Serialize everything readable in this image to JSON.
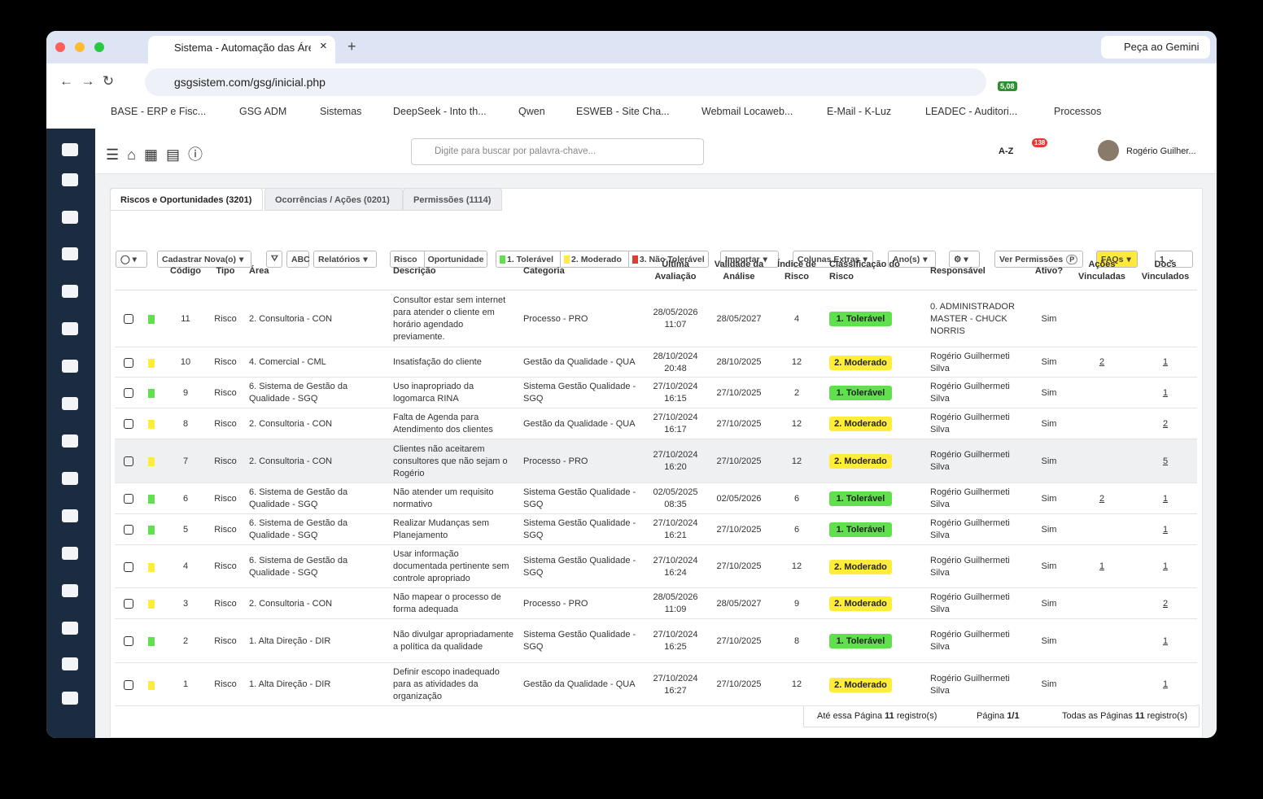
{
  "browser": {
    "tab_title": "Sistema - Automação das Áre",
    "gemini": "Peça ao Gemini",
    "url": "gsgsistem.com/gsg/inicial.php",
    "badge": "5,08",
    "bookmarks": [
      "BASE - ERP e Fisc...",
      "GSG ADM",
      "Sistemas",
      "DeepSeek - Into th...",
      "Qwen",
      "ESWEB - Site Cha...",
      "Webmail Locaweb...",
      "E-Mail - K-Luz",
      "LEADEC - Auditori...",
      "Processos"
    ]
  },
  "app": {
    "search_placeholder": "Digite para buscar por palavra-chave...",
    "az": "A-Z",
    "notifications": "138",
    "user": "Rogério Guilher..."
  },
  "tabs": [
    "Riscos e Oportunidades  (3201)",
    "Ocorrências / Ações  (0201)",
    "Permissões (1114)"
  ],
  "toolbar": {
    "register": "Cadastrar Nova(o)",
    "abc": "ABC",
    "reports": "Relatórios",
    "risk": "Risco",
    "opportunity": "Oportunidade",
    "tolerable": "1. Tolerável",
    "moderate": "2. Moderado",
    "not_tolerable": "3. Não Tolerável",
    "import": "Importar",
    "extra_columns": "Colunas Extras",
    "years": "Ano(s)",
    "permissions": "Ver Permissões",
    "permissions_badge": "P",
    "faqs": "FAQs",
    "page": "1"
  },
  "table": {
    "headers": {
      "codigo": "Código",
      "tipo": "Tipo",
      "area": "Área",
      "descricao": "Descrição",
      "categoria": "Categoria",
      "ultima": "Última Avaliação",
      "validade": "Validade da Análise",
      "indice": "Índice de Risco",
      "classificacao": "Classificação do Risco",
      "responsavel": "Responsável",
      "ativo": "Ativo?",
      "acoes": "Ações Vinculadas",
      "docs": "Docs Vinculados"
    },
    "rows": [
      {
        "codigo": 11,
        "tipo": "Risco",
        "area": "2. Consultoria - CON",
        "descricao": "Consultor estar sem internet para atender o cliente em horário agendado previamente.",
        "categoria": "Processo - PRO",
        "ultima": "28/05/2026 11:07",
        "validade": "28/05/2027",
        "indice": 4,
        "classificacao": "1. Tolerável",
        "color": "#5fe04c",
        "responsavel": "0. ADMINISTRADOR MASTER - CHUCK NORRIS",
        "ativo": "Sim",
        "acoes": null,
        "docs": null
      },
      {
        "codigo": 10,
        "tipo": "Risco",
        "area": "4. Comercial - CML",
        "descricao": "Insatisfação do cliente",
        "categoria": "Gestão da Qualidade - QUA",
        "ultima": "28/10/2024 20:48",
        "validade": "28/10/2025",
        "indice": 12,
        "classificacao": "2. Moderado",
        "color": "#ffed3a",
        "responsavel": "Rogério Guilhermeti Silva",
        "ativo": "Sim",
        "acoes": "2",
        "docs": "1"
      },
      {
        "codigo": 9,
        "tipo": "Risco",
        "area": "6. Sistema de Gestão da Qualidade - SGQ",
        "descricao": "Uso inapropriado da logomarca RINA",
        "categoria": "Sistema Gestão Qualidade - SGQ",
        "ultima": "27/10/2024 16:15",
        "validade": "27/10/2025",
        "indice": 2,
        "classificacao": "1. Tolerável",
        "color": "#5fe04c",
        "responsavel": "Rogério Guilhermeti Silva",
        "ativo": "Sim",
        "acoes": null,
        "docs": "1"
      },
      {
        "codigo": 8,
        "tipo": "Risco",
        "area": "2. Consultoria - CON",
        "descricao": "Falta de Agenda para Atendimento dos clientes",
        "categoria": "Gestão da Qualidade - QUA",
        "ultima": "27/10/2024 16:17",
        "validade": "27/10/2025",
        "indice": 12,
        "classificacao": "2. Moderado",
        "color": "#ffed3a",
        "responsavel": "Rogério Guilhermeti Silva",
        "ativo": "Sim",
        "acoes": null,
        "docs": "2"
      },
      {
        "codigo": 7,
        "tipo": "Risco",
        "area": "2. Consultoria - CON",
        "descricao": "Clientes não aceitarem consultores que não sejam o Rogério",
        "categoria": "Processo - PRO",
        "ultima": "27/10/2024 16:20",
        "validade": "27/10/2025",
        "indice": 12,
        "classificacao": "2. Moderado",
        "color": "#ffed3a",
        "responsavel": "Rogério Guilhermeti Silva",
        "ativo": "Sim",
        "acoes": null,
        "docs": "5"
      },
      {
        "codigo": 6,
        "tipo": "Risco",
        "area": "6. Sistema de Gestão da Qualidade - SGQ",
        "descricao": "Não atender um requisito normativo",
        "categoria": "Sistema Gestão Qualidade - SGQ",
        "ultima": "02/05/2025 08:35",
        "validade": "02/05/2026",
        "indice": 6,
        "classificacao": "1. Tolerável",
        "color": "#5fe04c",
        "responsavel": "Rogério Guilhermeti Silva",
        "ativo": "Sim",
        "acoes": "2",
        "docs": "1"
      },
      {
        "codigo": 5,
        "tipo": "Risco",
        "area": "6. Sistema de Gestão da Qualidade - SGQ",
        "descricao": "Realizar Mudanças sem Planejamento",
        "categoria": "Sistema Gestão Qualidade - SGQ",
        "ultima": "27/10/2024 16:21",
        "validade": "27/10/2025",
        "indice": 6,
        "classificacao": "1. Tolerável",
        "color": "#5fe04c",
        "responsavel": "Rogério Guilhermeti Silva",
        "ativo": "Sim",
        "acoes": null,
        "docs": "1"
      },
      {
        "codigo": 4,
        "tipo": "Risco",
        "area": "6. Sistema de Gestão da Qualidade - SGQ",
        "descricao": "Usar informação documentada pertinente sem controle apropriado",
        "categoria": "Sistema Gestão Qualidade - SGQ",
        "ultima": "27/10/2024 16:24",
        "validade": "27/10/2025",
        "indice": 12,
        "classificacao": "2. Moderado",
        "color": "#ffed3a",
        "responsavel": "Rogério Guilhermeti Silva",
        "ativo": "Sim",
        "acoes": "1",
        "docs": "1"
      },
      {
        "codigo": 3,
        "tipo": "Risco",
        "area": "2. Consultoria - CON",
        "descricao": "Não mapear o processo de forma adequada",
        "categoria": "Processo - PRO",
        "ultima": "28/05/2026 11:09",
        "validade": "28/05/2027",
        "indice": 9,
        "classificacao": "2. Moderado",
        "color": "#ffed3a",
        "responsavel": "Rogério Guilhermeti Silva",
        "ativo": "Sim",
        "acoes": null,
        "docs": "2"
      },
      {
        "codigo": 2,
        "tipo": "Risco",
        "area": "1. Alta Direção - DIR",
        "descricao": "Não divulgar apropriadamente a política da qualidade",
        "categoria": "Sistema Gestão Qualidade - SGQ",
        "ultima": "27/10/2024 16:25",
        "validade": "27/10/2025",
        "indice": 8,
        "classificacao": "1. Tolerável",
        "color": "#5fe04c",
        "responsavel": "Rogério Guilhermeti Silva",
        "ativo": "Sim",
        "acoes": null,
        "docs": "1"
      },
      {
        "codigo": 1,
        "tipo": "Risco",
        "area": "1. Alta Direção - DIR",
        "descricao": "Definir escopo inadequado para as atividades da organização",
        "categoria": "Gestão da Qualidade - QUA",
        "ultima": "27/10/2024 16:27",
        "validade": "27/10/2025",
        "indice": 12,
        "classificacao": "2. Moderado",
        "color": "#ffed3a",
        "responsavel": "Rogério Guilhermeti Silva",
        "ativo": "Sim",
        "acoes": null,
        "docs": "1"
      }
    ]
  },
  "footer": {
    "this_page": [
      "Até essa Página ",
      "11",
      " registro(s)"
    ],
    "page": [
      "Página ",
      "1/1"
    ],
    "all_pages": [
      "Todas as Páginas ",
      "11",
      " registro(s)"
    ]
  }
}
